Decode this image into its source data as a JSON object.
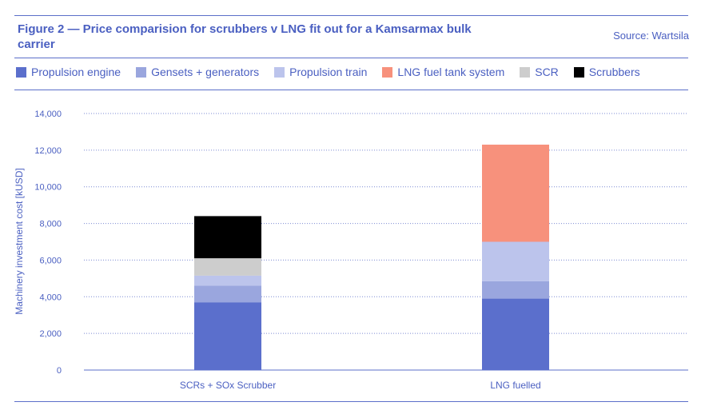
{
  "header": {
    "title": "Figure 2 — Price comparision for scrubbers v LNG fit out for a Kamsarmax bulk carrier",
    "source": "Source: Wartsila"
  },
  "chart_data": {
    "type": "bar",
    "stacked": true,
    "categories": [
      "SCRs + SOx Scrubber",
      "LNG fuelled"
    ],
    "ylabel": "Machinery investment cost [kUSD]",
    "ylim": [
      0,
      14000
    ],
    "yticks": [
      0,
      2000,
      4000,
      6000,
      8000,
      10000,
      12000,
      14000
    ],
    "ytick_labels": [
      "0",
      "2,000",
      "4,000",
      "6,000",
      "8,000",
      "10,000",
      "12,000",
      "14,000"
    ],
    "grid": true,
    "legend_position": "top",
    "series": [
      {
        "name": "Propulsion engine",
        "color": "#5b6fcc",
        "values": [
          3700,
          3900
        ]
      },
      {
        "name": "Gensets + generators",
        "color": "#9aa6de",
        "values": [
          900,
          950
        ]
      },
      {
        "name": "Propulsion train",
        "color": "#bcc4ec",
        "values": [
          550,
          2150
        ]
      },
      {
        "name": "LNG fuel tank system",
        "color": "#f7917c",
        "values": [
          0,
          5300
        ]
      },
      {
        "name": "SCR",
        "color": "#cdcdcd",
        "values": [
          950,
          0
        ]
      },
      {
        "name": "Scrubbers",
        "color": "#000000",
        "values": [
          2300,
          0
        ]
      }
    ]
  }
}
